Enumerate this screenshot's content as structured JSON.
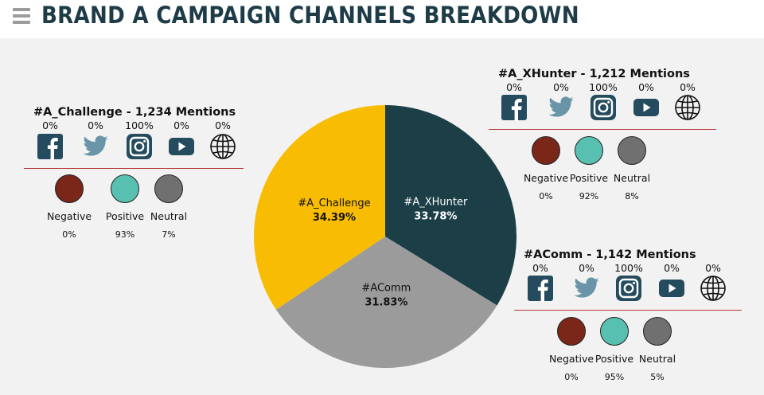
{
  "header": {
    "title": "BRAND A CAMPAIGN CHANNELS BREAKDOWN"
  },
  "colors": {
    "challenge": "#f8bc02",
    "xhunter": "#1c3e47",
    "acomm": "#9b9b9b",
    "negative": "#7a271a",
    "positive": "#57c0b1",
    "neutral": "#707070",
    "icon": "#244c5e"
  },
  "chart_data": {
    "type": "pie",
    "slices": [
      {
        "name": "#A_XHunter",
        "value": 33.78,
        "label": "33.78%"
      },
      {
        "name": "#AComm",
        "value": 31.83,
        "label": "31.83%"
      },
      {
        "name": "#A_Challenge",
        "value": 34.39,
        "label": "34.39%"
      }
    ]
  },
  "panels": {
    "challenge": {
      "title": "#A_Challenge - 1,234 Mentions",
      "channels": [
        {
          "icon": "facebook-icon",
          "value": "0%"
        },
        {
          "icon": "twitter-icon",
          "value": "0%"
        },
        {
          "icon": "instagram-icon",
          "value": "100%"
        },
        {
          "icon": "youtube-icon",
          "value": "0%"
        },
        {
          "icon": "globe-icon",
          "value": "0%"
        }
      ],
      "sentiment": [
        {
          "label": "Negative",
          "value": "0%"
        },
        {
          "label": "Positive",
          "value": "93%"
        },
        {
          "label": "Neutral",
          "value": "7%"
        }
      ]
    },
    "xhunter": {
      "title": "#A_XHunter - 1,212 Mentions",
      "channels": [
        {
          "icon": "facebook-icon",
          "value": "0%"
        },
        {
          "icon": "twitter-icon",
          "value": "0%"
        },
        {
          "icon": "instagram-icon",
          "value": "100%"
        },
        {
          "icon": "youtube-icon",
          "value": "0%"
        },
        {
          "icon": "globe-icon",
          "value": "0%"
        }
      ],
      "sentiment": [
        {
          "label": "Negative",
          "value": "0%"
        },
        {
          "label": "Positive",
          "value": "92%"
        },
        {
          "label": "Neutral",
          "value": "8%"
        }
      ]
    },
    "acomm": {
      "title": "#AComm - 1,142 Mentions",
      "channels": [
        {
          "icon": "facebook-icon",
          "value": "0%"
        },
        {
          "icon": "twitter-icon",
          "value": "0%"
        },
        {
          "icon": "instagram-icon",
          "value": "100%"
        },
        {
          "icon": "youtube-icon",
          "value": "0%"
        },
        {
          "icon": "globe-icon",
          "value": "0%"
        }
      ],
      "sentiment": [
        {
          "label": "Negative",
          "value": "0%"
        },
        {
          "label": "Positive",
          "value": "95%"
        },
        {
          "label": "Neutral",
          "value": "5%"
        }
      ]
    }
  }
}
